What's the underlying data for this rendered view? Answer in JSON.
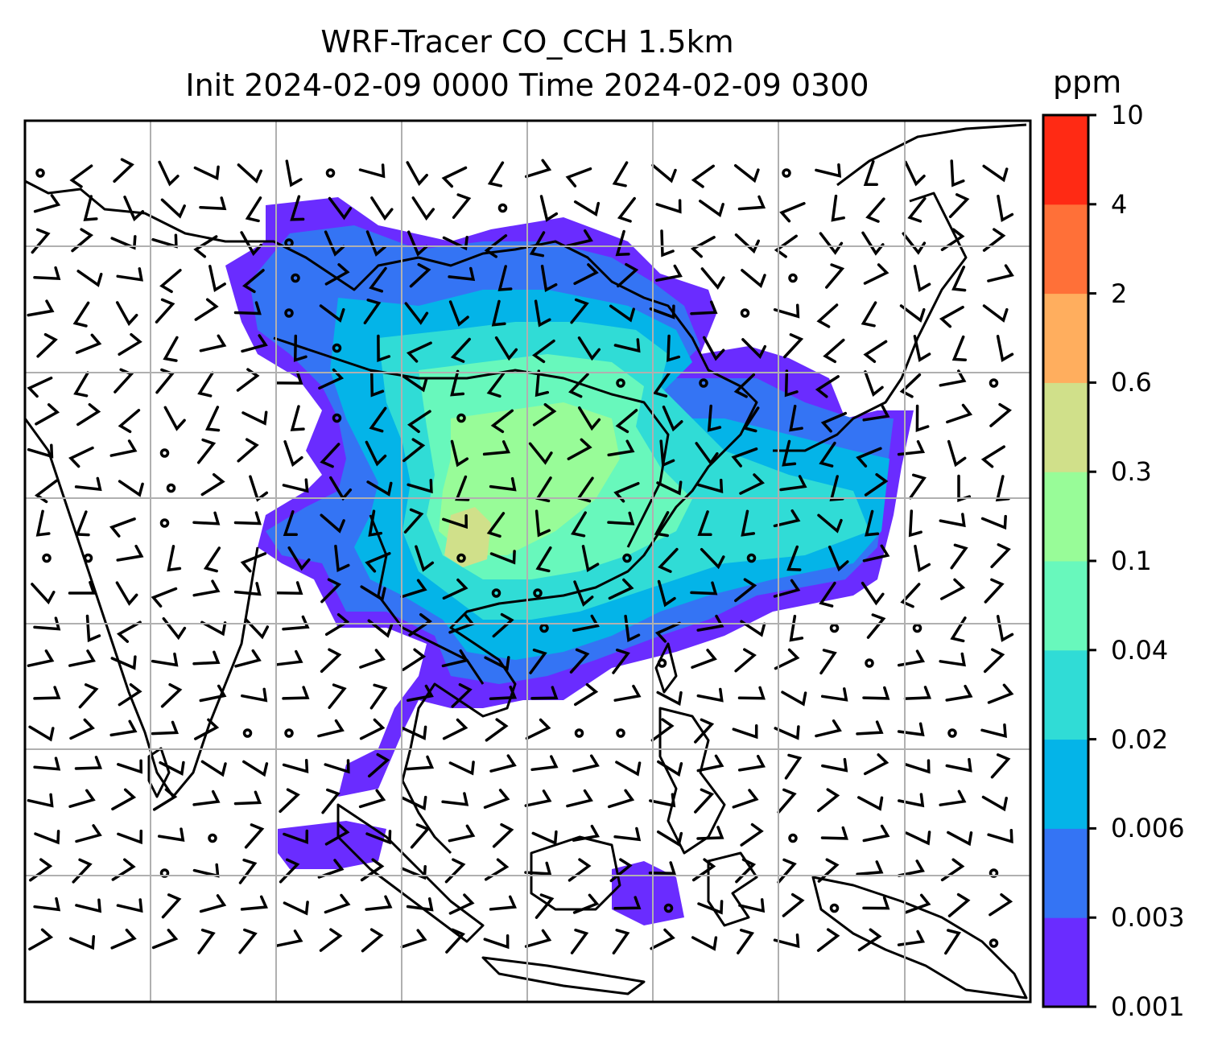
{
  "title_line1": "WRF-Tracer CO_CCH 1.5km",
  "title_line2": "Init 2024-02-09 0000 Time 2024-02-09 0300",
  "colorbar": {
    "unit": "ppm",
    "levels": [
      "0.001",
      "0.003",
      "0.006",
      "0.02",
      "0.04",
      "0.1",
      "0.3",
      "0.6",
      "2",
      "4",
      "10"
    ],
    "colors": [
      "#6a2cff",
      "#3474f4",
      "#04b4e8",
      "#30dcd6",
      "#68f8bc",
      "#98fc98",
      "#d0e08a",
      "#ffae5e",
      "#ff7038",
      "#ff2a14"
    ]
  },
  "map": {
    "background": "#ffffff",
    "coast_color": "#000000",
    "grid_color": "#b0b0b0"
  }
}
